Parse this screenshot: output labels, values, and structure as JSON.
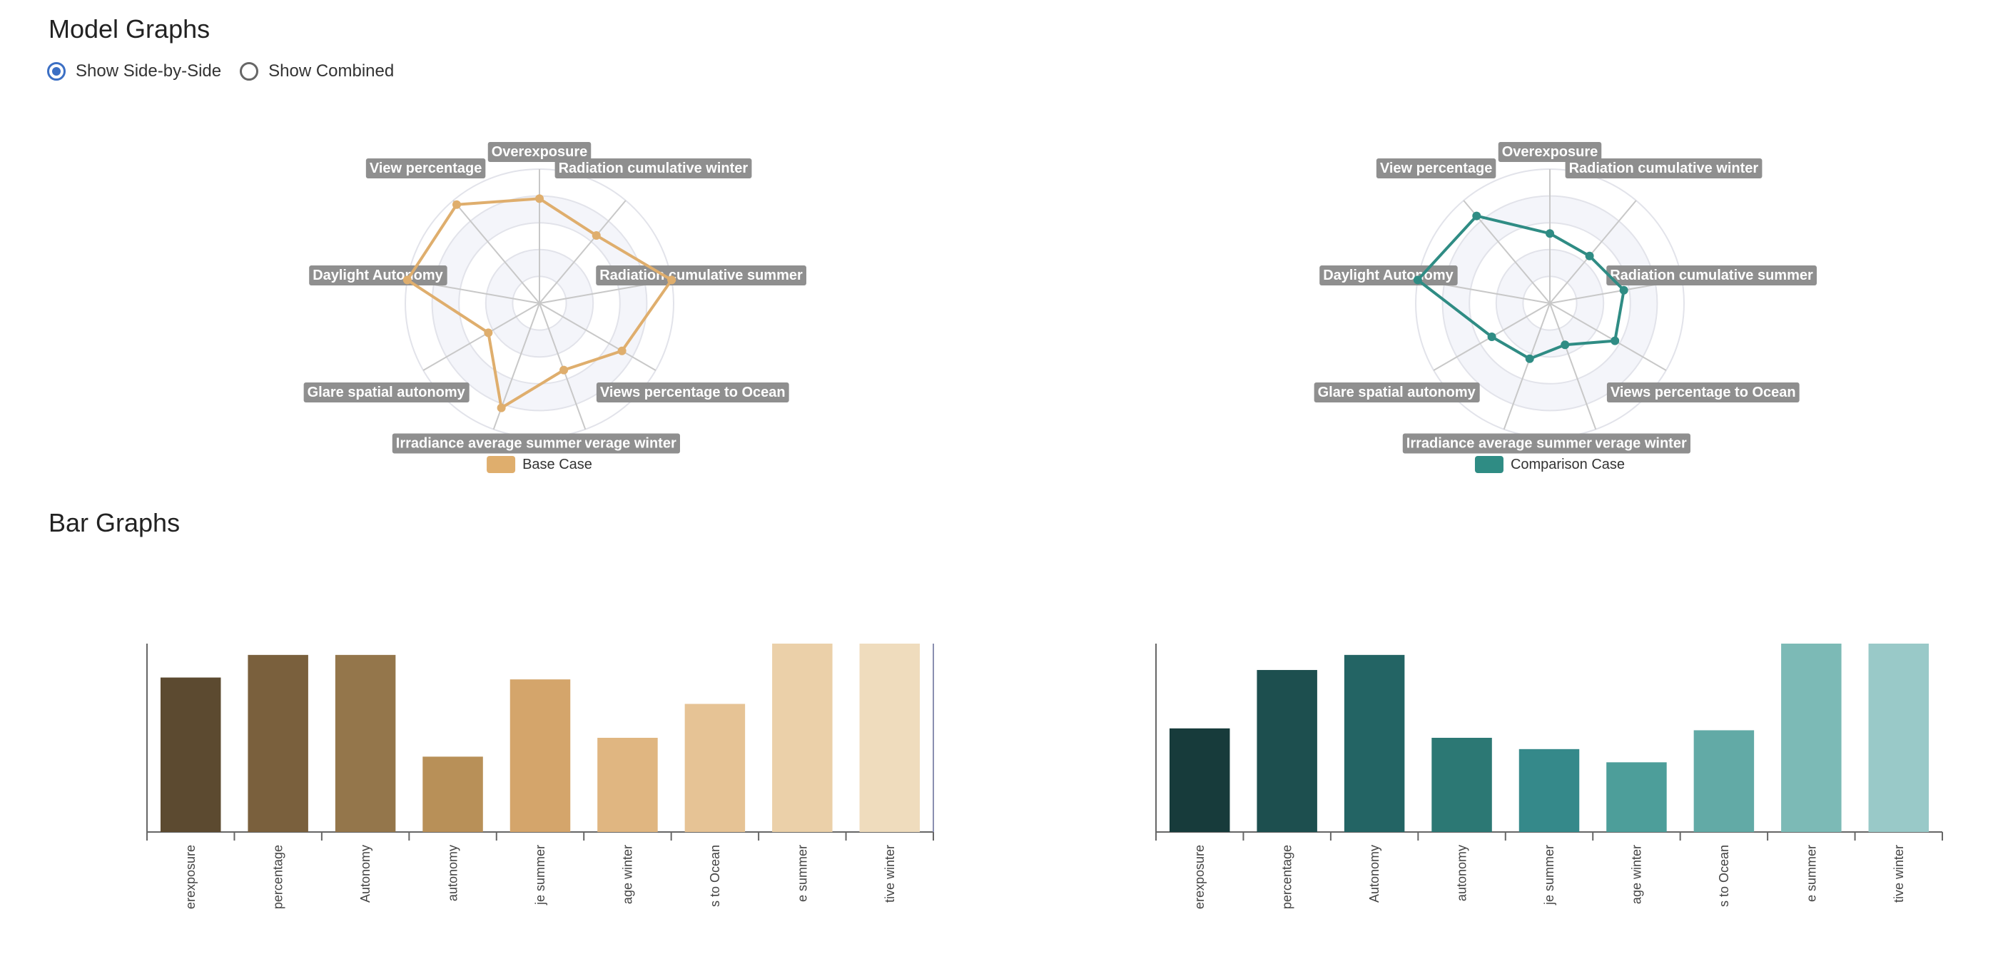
{
  "headings": {
    "model_graphs": "Model Graphs",
    "bar_graphs": "Bar Graphs"
  },
  "view_toggle": {
    "options": [
      {
        "label": "Show Side-by-Side",
        "checked": true
      },
      {
        "label": "Show Combined",
        "checked": false
      }
    ]
  },
  "chart_data": [
    {
      "type": "radar",
      "axes": [
        "Overexposure",
        "Radiation cumulative winter",
        "Radiation cumulative summer",
        "Views percentage to Ocean",
        "Irradiance average winter",
        "Irradiance average summer",
        "Glare spatial autonomy",
        "Daylight Autonomy",
        "View percentage"
      ],
      "series": [
        {
          "name": "Base Case",
          "color": "#dfae6d",
          "values": [
            0.78,
            0.66,
            1.0,
            0.71,
            0.53,
            0.83,
            0.44,
            1.0,
            0.96
          ]
        }
      ],
      "rmax": 1.0,
      "legend": "bottom"
    },
    {
      "type": "radar",
      "axes": [
        "Overexposure",
        "Radiation cumulative winter",
        "Radiation cumulative summer",
        "Views percentage to Ocean",
        "Irradiance average winter",
        "Irradiance average summer",
        "Glare spatial autonomy",
        "Daylight Autonomy",
        "View percentage"
      ],
      "series": [
        {
          "name": "Comparison Case",
          "color": "#2f8c84",
          "values": [
            0.52,
            0.46,
            0.56,
            0.56,
            0.33,
            0.44,
            0.5,
            1.0,
            0.85
          ]
        }
      ],
      "rmax": 1.0,
      "legend": "bottom"
    },
    {
      "type": "bar",
      "categories": [
        "Overexposure",
        "View percentage",
        "Daylight Autonomy",
        "Glare spatial autonomy",
        "Irradiance average summer",
        "Irradiance average winter",
        "Views percentage to Ocean",
        "Radiation cumulative summer",
        "Radiation cumulative winter"
      ],
      "visible_tick_labels": [
        "erexposure",
        "percentage",
        "Autonomy",
        "autonomy",
        "je summer",
        "age winter",
        "s to Ocean",
        "e summer",
        "tive winter"
      ],
      "values": [
        0.82,
        0.94,
        0.94,
        0.4,
        0.81,
        0.5,
        0.68,
        1.0,
        1.0
      ],
      "colors": [
        "#5c4a30",
        "#7a603d",
        "#94764b",
        "#b89058",
        "#d4a56b",
        "#e0b681",
        "#e6c395",
        "#ebd0a9",
        "#efdcbd"
      ],
      "ylim": [
        0,
        1
      ]
    },
    {
      "type": "bar",
      "categories": [
        "Overexposure",
        "View percentage",
        "Daylight Autonomy",
        "Glare spatial autonomy",
        "Irradiance average summer",
        "Irradiance average winter",
        "Views percentage to Ocean",
        "Radiation cumulative summer",
        "Radiation cumulative winter"
      ],
      "visible_tick_labels": [
        "erexposure",
        "percentage",
        "Autonomy",
        "autonomy",
        "je summer",
        "age winter",
        "s to Ocean",
        "e summer",
        "tive winter"
      ],
      "values": [
        0.55,
        0.86,
        0.94,
        0.5,
        0.44,
        0.37,
        0.54,
        1.0,
        1.0
      ],
      "colors": [
        "#173b3b",
        "#1d4f4f",
        "#236464",
        "#2c7874",
        "#35898a",
        "#4d9e9a",
        "#62aaa6",
        "#7cbab6",
        "#99c9c8"
      ],
      "ylim": [
        0,
        1
      ]
    }
  ]
}
